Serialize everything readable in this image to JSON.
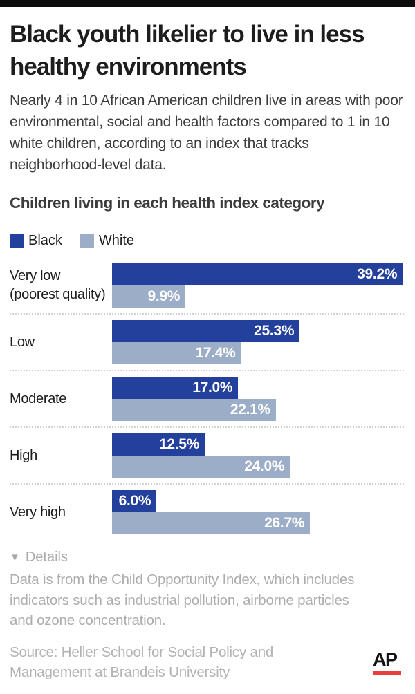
{
  "header": {
    "title": "Black youth likelier to live in less healthy environments",
    "subtitle": "Nearly 4 in 10 African American children live in areas with poor environmental, social and health factors compared to 1 in 10 white children, according to an index that tracks neighborhood-level data."
  },
  "chart": {
    "heading": "Children living in each health index category",
    "legend": [
      {
        "label": "Black",
        "color": "#24409d"
      },
      {
        "label": "White",
        "color": "#9cadc8"
      }
    ]
  },
  "chart_data": {
    "type": "bar",
    "orientation": "horizontal",
    "title": "Children living in each health index category",
    "categories": [
      "Very low (poorest quality)",
      "Low",
      "Moderate",
      "High",
      "Very high"
    ],
    "series": [
      {
        "name": "Black",
        "color": "#24409d",
        "values": [
          39.2,
          25.3,
          17.0,
          12.5,
          6.0
        ]
      },
      {
        "name": "White",
        "color": "#9cadc8",
        "values": [
          9.9,
          17.4,
          22.1,
          24.0,
          26.7
        ]
      }
    ],
    "unit": "%",
    "xlim": [
      0,
      40
    ],
    "value_labels_position": "inside-end",
    "grid": "dotted row separators",
    "legend_position": "top-left",
    "rows": [
      {
        "label": "Very low",
        "label2": "(poorest quality)",
        "black": 39.2,
        "black_label": "39.2%",
        "white": 9.9,
        "white_label": "9.9%"
      },
      {
        "label": "Low",
        "label2": "",
        "black": 25.3,
        "black_label": "25.3%",
        "white": 17.4,
        "white_label": "17.4%"
      },
      {
        "label": "Moderate",
        "label2": "",
        "black": 17.0,
        "black_label": "17.0%",
        "white": 22.1,
        "white_label": "22.1%"
      },
      {
        "label": "High",
        "label2": "",
        "black": 12.5,
        "black_label": "12.5%",
        "white": 24.0,
        "white_label": "24.0%"
      },
      {
        "label": "Very high",
        "label2": "",
        "black": 6.0,
        "black_label": "6.0%",
        "white": 26.7,
        "white_label": "26.7%"
      }
    ]
  },
  "footer": {
    "details_icon": "▼",
    "details_toggle": "Details",
    "details_text": "Data is from the Child Opportunity Index, which includes indicators such as industrial pollution, airborne particles and ozone concentration.",
    "source": "Source: Heller School for Social Policy and Management at Brandeis University",
    "logo_text": "AP"
  }
}
